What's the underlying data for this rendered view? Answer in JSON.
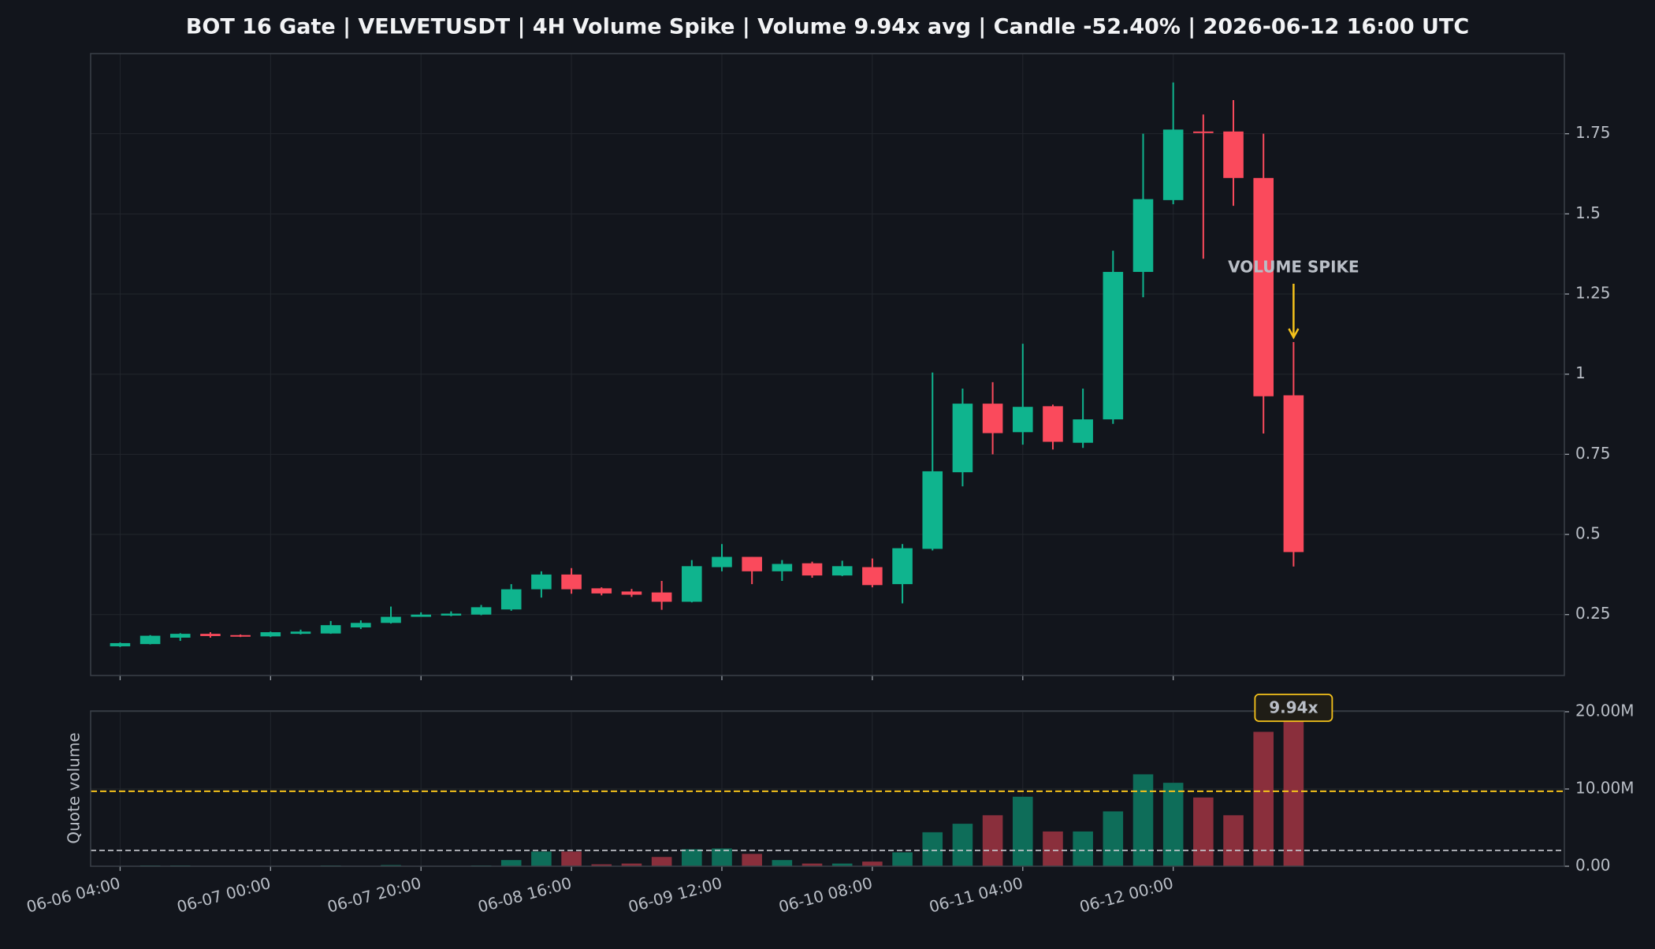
{
  "chart_data": [
    {
      "type": "candlestick",
      "title": "BOT 16 Gate | VELVETUSDT | 4H Volume Spike | Volume 9.94x avg | Candle -52.40% | 2026-06-12 16:00 UTC",
      "x": [
        "06-06 04:00",
        "06-06 08:00",
        "06-06 12:00",
        "06-06 16:00",
        "06-06 20:00",
        "06-07 00:00",
        "06-07 04:00",
        "06-07 08:00",
        "06-07 12:00",
        "06-07 16:00",
        "06-07 20:00",
        "06-08 00:00",
        "06-08 04:00",
        "06-08 08:00",
        "06-08 12:00",
        "06-08 16:00",
        "06-08 20:00",
        "06-09 00:00",
        "06-09 04:00",
        "06-09 08:00",
        "06-09 12:00",
        "06-09 16:00",
        "06-09 20:00",
        "06-10 00:00",
        "06-10 04:00",
        "06-10 08:00",
        "06-10 12:00",
        "06-10 16:00",
        "06-10 20:00",
        "06-11 00:00",
        "06-11 04:00",
        "06-11 08:00",
        "06-11 12:00",
        "06-11 16:00",
        "06-11 20:00",
        "06-12 00:00",
        "06-12 04:00",
        "06-12 08:00",
        "06-12 12:00",
        "06-12 16:00"
      ],
      "open": [
        0.151,
        0.158,
        0.178,
        0.19,
        0.186,
        0.182,
        0.19,
        0.191,
        0.21,
        0.224,
        0.243,
        0.247,
        0.25,
        0.266,
        0.329,
        0.375,
        0.332,
        0.322,
        0.319,
        0.29,
        0.398,
        0.43,
        0.385,
        0.41,
        0.372,
        0.398,
        0.345,
        0.455,
        0.694,
        0.908,
        0.819,
        0.9,
        0.786,
        0.859,
        1.319,
        1.543,
        1.757,
        1.757,
        1.612,
        0.934
      ],
      "high": [
        0.163,
        0.186,
        0.192,
        0.195,
        0.188,
        0.197,
        0.203,
        0.23,
        0.232,
        0.275,
        0.257,
        0.26,
        0.28,
        0.345,
        0.385,
        0.395,
        0.335,
        0.33,
        0.355,
        0.42,
        0.47,
        0.43,
        0.42,
        0.415,
        0.418,
        0.425,
        0.47,
        1.005,
        0.955,
        0.975,
        1.095,
        0.905,
        0.955,
        1.385,
        1.75,
        1.91,
        1.81,
        1.855,
        1.75,
        1.1
      ],
      "low": [
        0.149,
        0.157,
        0.168,
        0.178,
        0.18,
        0.18,
        0.188,
        0.19,
        0.205,
        0.222,
        0.245,
        0.245,
        0.248,
        0.262,
        0.303,
        0.315,
        0.31,
        0.305,
        0.265,
        0.288,
        0.385,
        0.345,
        0.355,
        0.365,
        0.37,
        0.335,
        0.285,
        0.45,
        0.65,
        0.75,
        0.78,
        0.765,
        0.77,
        0.845,
        1.24,
        1.53,
        1.36,
        1.525,
        0.815,
        0.4
      ],
      "close": [
        0.161,
        0.184,
        0.19,
        0.183,
        0.182,
        0.195,
        0.197,
        0.217,
        0.224,
        0.243,
        0.25,
        0.253,
        0.273,
        0.329,
        0.375,
        0.329,
        0.316,
        0.312,
        0.29,
        0.401,
        0.43,
        0.385,
        0.408,
        0.372,
        0.401,
        0.342,
        0.457,
        0.697,
        0.908,
        0.816,
        0.898,
        0.789,
        0.859,
        1.319,
        1.546,
        1.763,
        1.753,
        1.612,
        0.931,
        0.445
      ],
      "up_color": "#0fb48e",
      "down_color": "#fa4a5c",
      "ylim": [
        0.06,
        2.0
      ],
      "yticks": [
        0.25,
        0.5,
        0.75,
        1,
        1.25,
        1.5,
        1.75
      ],
      "grid": true,
      "annotation": "VOLUME SPIKE",
      "annotation_color": "#f5c21b"
    },
    {
      "type": "bar",
      "ylabel": "Quote volume",
      "values": [
        50000,
        100000,
        100000,
        30000,
        30000,
        30000,
        50000,
        100000,
        50000,
        150000,
        50000,
        50000,
        100000,
        800000,
        1900000,
        1900000,
        250000,
        350000,
        1200000,
        2200000,
        2300000,
        1600000,
        800000,
        350000,
        350000,
        600000,
        1800000,
        4400000,
        5500000,
        6600000,
        9000000,
        4500000,
        4500000,
        7100000,
        11900000,
        10800000,
        8900000,
        6600000,
        17400000,
        20400000
      ],
      "up_color": "#0e6d59",
      "down_color": "#8a2f3c",
      "ylim": [
        0,
        20100000
      ],
      "yticks": [
        {
          "value": 0,
          "label": "0.00"
        },
        {
          "value": 10000000,
          "label": "10.00M"
        },
        {
          "value": 20000000,
          "label": "20.00M"
        }
      ],
      "xticks": [
        "06-06 04:00",
        "06-07 00:00",
        "06-07 20:00",
        "06-08 16:00",
        "06-09 12:00",
        "06-10 08:00",
        "06-11 04:00",
        "06-12 00:00"
      ],
      "average": 2050000,
      "average_color": "#c9ccd1",
      "threshold": 9700000,
      "threshold_color": "#f5c21b",
      "spike_label": "9.94x",
      "grid": true
    }
  ]
}
